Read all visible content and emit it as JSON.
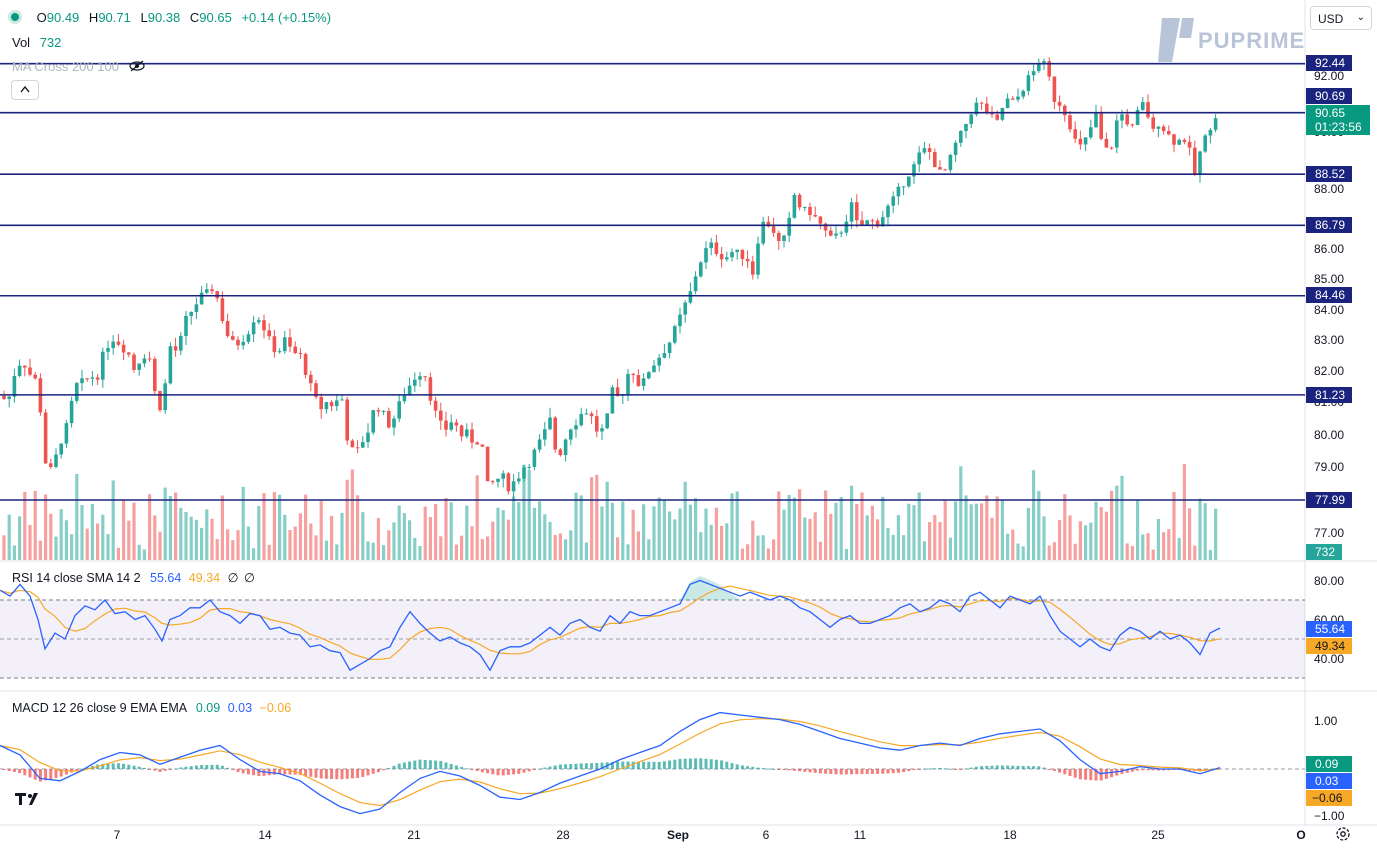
{
  "header": {
    "open_label": "O",
    "open": "90.49",
    "high_label": "H",
    "high": "90.71",
    "low_label": "L",
    "low": "90.38",
    "close_label": "C",
    "close": "90.65",
    "change": "+0.14 (+0.15%)",
    "vol_label": "Vol",
    "vol": "732",
    "ma_label": "MA Cross 200 100",
    "status_color": "#089981"
  },
  "currency": "USD",
  "brand": "PUPRIME",
  "price_axis": [
    "92.00",
    "90.00",
    "88.00",
    "86.00",
    "85.00",
    "84.00",
    "83.00",
    "82.00",
    "81.00",
    "80.00",
    "79.00",
    "77.00"
  ],
  "level_lines": [
    {
      "value": "92.44"
    },
    {
      "value": "90.69"
    },
    {
      "value": "88.52"
    },
    {
      "value": "86.79"
    },
    {
      "value": "84.46"
    },
    {
      "value": "81.23"
    },
    {
      "value": "77.99"
    }
  ],
  "last_price": "90.65",
  "countdown": "01:23:56",
  "volume_tag": "732",
  "rsi": {
    "label": "RSI 14 close SMA 14 2",
    "rsi_value": "55.64",
    "sma_value": "49.34",
    "axis": [
      "80.00",
      "60.00",
      "40.00"
    ]
  },
  "macd": {
    "label": "MACD 12 26 close 9 EMA EMA",
    "hist": "0.09",
    "macd": "0.03",
    "signal": "−0.06",
    "axis": [
      "1.00",
      "−1.00"
    ]
  },
  "time_axis": [
    "7",
    "14",
    "21",
    "28",
    "Sep",
    "6",
    "11",
    "18",
    "25",
    "O"
  ],
  "colors": {
    "up": "#26a69a",
    "down": "#ef5350",
    "level": "#1a237e",
    "rsi": "#2962ff",
    "sma": "#f7a826",
    "macd": "#2962ff",
    "signal": "#f7a826"
  },
  "chart_data": {
    "type": "candlestick",
    "series_points": [
      [
        0,
        81.2
      ],
      [
        8,
        81.0
      ],
      [
        15,
        82.0
      ],
      [
        22,
        82.4
      ],
      [
        30,
        81.9
      ],
      [
        38,
        81.6
      ],
      [
        45,
        79.2
      ],
      [
        52,
        78.8
      ],
      [
        60,
        79.8
      ],
      [
        68,
        80.3
      ],
      [
        75,
        81.5
      ],
      [
        82,
        81.6
      ],
      [
        90,
        81.8
      ],
      [
        98,
        81.9
      ],
      [
        105,
        82.7
      ],
      [
        112,
        83.1
      ],
      [
        120,
        82.9
      ],
      [
        128,
        82.6
      ],
      [
        135,
        82.0
      ],
      [
        142,
        82.6
      ],
      [
        150,
        82.4
      ],
      [
        157,
        80.8
      ],
      [
        163,
        81.0
      ],
      [
        170,
        82.8
      ],
      [
        178,
        82.6
      ],
      [
        185,
        83.6
      ],
      [
        192,
        84.0
      ],
      [
        200,
        84.4
      ],
      [
        207,
        84.5
      ],
      [
        214,
        84.8
      ],
      [
        220,
        84.0
      ],
      [
        227,
        83.2
      ],
      [
        234,
        82.8
      ],
      [
        241,
        83.0
      ],
      [
        248,
        83.3
      ],
      [
        256,
        83.9
      ],
      [
        263,
        83.5
      ],
      [
        270,
        82.9
      ],
      [
        278,
        82.6
      ],
      [
        285,
        83.0
      ],
      [
        292,
        82.6
      ],
      [
        300,
        82.5
      ],
      [
        307,
        81.9
      ],
      [
        313,
        81.2
      ],
      [
        320,
        80.8
      ],
      [
        327,
        81.0
      ],
      [
        335,
        80.9
      ],
      [
        341,
        81.3
      ],
      [
        348,
        79.8
      ],
      [
        355,
        79.3
      ],
      [
        362,
        79.8
      ],
      [
        369,
        80.2
      ],
      [
        376,
        81.0
      ],
      [
        383,
        80.6
      ],
      [
        390,
        80.3
      ],
      [
        397,
        80.7
      ],
      [
        404,
        81.3
      ],
      [
        411,
        81.6
      ],
      [
        418,
        82.0
      ],
      [
        425,
        81.9
      ],
      [
        432,
        81.0
      ],
      [
        439,
        80.3
      ],
      [
        446,
        80.2
      ],
      [
        453,
        80.5
      ],
      [
        460,
        80.0
      ],
      [
        467,
        80.0
      ],
      [
        474,
        79.8
      ],
      [
        481,
        79.9
      ],
      [
        488,
        78.3
      ],
      [
        495,
        78.6
      ],
      [
        502,
        78.7
      ],
      [
        509,
        78.4
      ],
      [
        516,
        78.6
      ],
      [
        523,
        79.0
      ],
      [
        530,
        79.2
      ],
      [
        537,
        79.6
      ],
      [
        544,
        80.0
      ],
      [
        551,
        80.5
      ],
      [
        557,
        79.2
      ],
      [
        564,
        79.8
      ],
      [
        571,
        80.3
      ],
      [
        578,
        80.5
      ],
      [
        585,
        80.8
      ],
      [
        592,
        80.5
      ],
      [
        599,
        80.0
      ],
      [
        606,
        80.3
      ],
      [
        613,
        81.4
      ],
      [
        620,
        81.0
      ],
      [
        627,
        81.9
      ],
      [
        634,
        82.0
      ],
      [
        641,
        81.4
      ],
      [
        648,
        82.0
      ],
      [
        655,
        82.3
      ],
      [
        662,
        82.6
      ],
      [
        669,
        82.9
      ],
      [
        676,
        83.4
      ],
      [
        683,
        84.0
      ],
      [
        690,
        84.5
      ],
      [
        697,
        85.3
      ],
      [
        704,
        85.9
      ],
      [
        711,
        86.1
      ],
      [
        718,
        85.9
      ],
      [
        725,
        85.7
      ],
      [
        732,
        85.9
      ],
      [
        739,
        85.8
      ],
      [
        746,
        85.8
      ],
      [
        753,
        85.2
      ],
      [
        760,
        86.8
      ],
      [
        767,
        86.9
      ],
      [
        774,
        86.6
      ],
      [
        781,
        86.0
      ],
      [
        788,
        86.7
      ],
      [
        795,
        87.9
      ],
      [
        802,
        87.2
      ],
      [
        809,
        87.3
      ],
      [
        816,
        87.0
      ],
      [
        823,
        86.7
      ],
      [
        830,
        86.3
      ],
      [
        837,
        86.4
      ],
      [
        844,
        86.8
      ],
      [
        851,
        87.5
      ],
      [
        858,
        86.7
      ],
      [
        865,
        86.9
      ],
      [
        872,
        86.9
      ],
      [
        879,
        86.9
      ],
      [
        886,
        87.3
      ],
      [
        893,
        87.6
      ],
      [
        900,
        88.0
      ],
      [
        907,
        88.5
      ],
      [
        914,
        88.8
      ],
      [
        921,
        89.3
      ],
      [
        928,
        89.4
      ],
      [
        935,
        88.9
      ],
      [
        942,
        88.4
      ],
      [
        949,
        88.9
      ],
      [
        956,
        89.6
      ],
      [
        963,
        90.0
      ],
      [
        970,
        90.7
      ],
      [
        977,
        91.0
      ],
      [
        984,
        90.9
      ],
      [
        991,
        90.5
      ],
      [
        998,
        90.3
      ],
      [
        1005,
        91.2
      ],
      [
        1012,
        91.0
      ],
      [
        1019,
        91.3
      ],
      [
        1026,
        91.8
      ],
      [
        1033,
        92.1
      ],
      [
        1040,
        92.6
      ],
      [
        1047,
        92.2
      ],
      [
        1054,
        91.2
      ],
      [
        1061,
        91.0
      ],
      [
        1068,
        90.5
      ],
      [
        1075,
        89.7
      ],
      [
        1082,
        89.4
      ],
      [
        1089,
        90.0
      ],
      [
        1096,
        90.6
      ],
      [
        1103,
        89.4
      ],
      [
        1110,
        89.3
      ],
      [
        1117,
        90.4
      ],
      [
        1124,
        90.7
      ],
      [
        1131,
        90.0
      ],
      [
        1138,
        90.7
      ],
      [
        1145,
        91.1
      ],
      [
        1152,
        89.9
      ],
      [
        1159,
        90.4
      ],
      [
        1166,
        90.0
      ],
      [
        1173,
        89.7
      ],
      [
        1180,
        89.7
      ],
      [
        1187,
        89.8
      ],
      [
        1194,
        88.4
      ],
      [
        1201,
        89.4
      ],
      [
        1208,
        90.0
      ],
      [
        1214,
        90.6
      ],
      [
        1220,
        90.65
      ]
    ],
    "rsi_points": [
      [
        0,
        75
      ],
      [
        10,
        72
      ],
      [
        20,
        78
      ],
      [
        30,
        72
      ],
      [
        38,
        60
      ],
      [
        45,
        45
      ],
      [
        55,
        53
      ],
      [
        65,
        50
      ],
      [
        75,
        62
      ],
      [
        85,
        67
      ],
      [
        95,
        65
      ],
      [
        105,
        70
      ],
      [
        115,
        63
      ],
      [
        125,
        64
      ],
      [
        135,
        60
      ],
      [
        145,
        62
      ],
      [
        155,
        55
      ],
      [
        162,
        49
      ],
      [
        170,
        60
      ],
      [
        180,
        62
      ],
      [
        190,
        66
      ],
      [
        200,
        66
      ],
      [
        210,
        70
      ],
      [
        220,
        64
      ],
      [
        230,
        62
      ],
      [
        240,
        58
      ],
      [
        250,
        63
      ],
      [
        260,
        62
      ],
      [
        270,
        55
      ],
      [
        280,
        56
      ],
      [
        290,
        53
      ],
      [
        300,
        52
      ],
      [
        310,
        46
      ],
      [
        320,
        47
      ],
      [
        330,
        44
      ],
      [
        340,
        43
      ],
      [
        350,
        34
      ],
      [
        360,
        37
      ],
      [
        370,
        40
      ],
      [
        380,
        44
      ],
      [
        390,
        46
      ],
      [
        400,
        56
      ],
      [
        410,
        64
      ],
      [
        420,
        58
      ],
      [
        430,
        53
      ],
      [
        440,
        49
      ],
      [
        450,
        51
      ],
      [
        460,
        48
      ],
      [
        470,
        46
      ],
      [
        480,
        42
      ],
      [
        490,
        34
      ],
      [
        500,
        44
      ],
      [
        510,
        46
      ],
      [
        520,
        46
      ],
      [
        530,
        48
      ],
      [
        540,
        52
      ],
      [
        550,
        56
      ],
      [
        560,
        52
      ],
      [
        570,
        58
      ],
      [
        580,
        60
      ],
      [
        590,
        56
      ],
      [
        600,
        54
      ],
      [
        610,
        62
      ],
      [
        620,
        58
      ],
      [
        630,
        64
      ],
      [
        640,
        62
      ],
      [
        650,
        62
      ],
      [
        660,
        64
      ],
      [
        670,
        66
      ],
      [
        680,
        68
      ],
      [
        690,
        78
      ],
      [
        700,
        80
      ],
      [
        710,
        78
      ],
      [
        720,
        76
      ],
      [
        730,
        74
      ],
      [
        740,
        72
      ],
      [
        750,
        74
      ],
      [
        760,
        72
      ],
      [
        770,
        70
      ],
      [
        780,
        72
      ],
      [
        790,
        70
      ],
      [
        800,
        66
      ],
      [
        810,
        64
      ],
      [
        820,
        60
      ],
      [
        830,
        56
      ],
      [
        840,
        60
      ],
      [
        850,
        62
      ],
      [
        860,
        58
      ],
      [
        870,
        58
      ],
      [
        880,
        60
      ],
      [
        890,
        62
      ],
      [
        900,
        66
      ],
      [
        910,
        68
      ],
      [
        920,
        64
      ],
      [
        930,
        66
      ],
      [
        940,
        70
      ],
      [
        950,
        68
      ],
      [
        960,
        64
      ],
      [
        970,
        72
      ],
      [
        980,
        74
      ],
      [
        990,
        70
      ],
      [
        1000,
        66
      ],
      [
        1010,
        72
      ],
      [
        1020,
        70
      ],
      [
        1030,
        68
      ],
      [
        1040,
        72
      ],
      [
        1050,
        62
      ],
      [
        1060,
        54
      ],
      [
        1070,
        50
      ],
      [
        1080,
        46
      ],
      [
        1090,
        50
      ],
      [
        1100,
        46
      ],
      [
        1110,
        44
      ],
      [
        1120,
        52
      ],
      [
        1130,
        56
      ],
      [
        1140,
        54
      ],
      [
        1150,
        50
      ],
      [
        1160,
        54
      ],
      [
        1170,
        50
      ],
      [
        1180,
        52
      ],
      [
        1190,
        48
      ],
      [
        1200,
        42
      ],
      [
        1210,
        53
      ],
      [
        1220,
        55.64
      ]
    ],
    "macd_points": [
      [
        0,
        0.5
      ],
      [
        20,
        0.3
      ],
      [
        40,
        -0.2
      ],
      [
        60,
        -0.25
      ],
      [
        80,
        -0.05
      ],
      [
        100,
        0.2
      ],
      [
        120,
        0.35
      ],
      [
        140,
        0.3
      ],
      [
        160,
        0.1
      ],
      [
        180,
        0.25
      ],
      [
        200,
        0.4
      ],
      [
        220,
        0.5
      ],
      [
        240,
        0.2
      ],
      [
        260,
        -0.05
      ],
      [
        280,
        -0.1
      ],
      [
        300,
        -0.25
      ],
      [
        320,
        -0.55
      ],
      [
        340,
        -0.8
      ],
      [
        360,
        -0.95
      ],
      [
        380,
        -0.85
      ],
      [
        400,
        -0.5
      ],
      [
        420,
        -0.2
      ],
      [
        440,
        -0.05
      ],
      [
        460,
        -0.15
      ],
      [
        480,
        -0.35
      ],
      [
        500,
        -0.6
      ],
      [
        520,
        -0.65
      ],
      [
        540,
        -0.5
      ],
      [
        560,
        -0.3
      ],
      [
        580,
        -0.15
      ],
      [
        600,
        0.0
      ],
      [
        620,
        0.2
      ],
      [
        640,
        0.35
      ],
      [
        660,
        0.5
      ],
      [
        680,
        0.8
      ],
      [
        700,
        1.05
      ],
      [
        720,
        1.2
      ],
      [
        740,
        1.15
      ],
      [
        760,
        1.1
      ],
      [
        780,
        1.05
      ],
      [
        800,
        0.95
      ],
      [
        820,
        0.8
      ],
      [
        840,
        0.65
      ],
      [
        860,
        0.55
      ],
      [
        880,
        0.45
      ],
      [
        900,
        0.4
      ],
      [
        920,
        0.5
      ],
      [
        940,
        0.55
      ],
      [
        960,
        0.5
      ],
      [
        980,
        0.65
      ],
      [
        1000,
        0.75
      ],
      [
        1020,
        0.8
      ],
      [
        1040,
        0.85
      ],
      [
        1060,
        0.6
      ],
      [
        1080,
        0.2
      ],
      [
        1100,
        -0.1
      ],
      [
        1120,
        -0.05
      ],
      [
        1140,
        0.05
      ],
      [
        1160,
        0.0
      ],
      [
        1180,
        0.0
      ],
      [
        1200,
        -0.1
      ],
      [
        1220,
        0.03
      ]
    ]
  }
}
